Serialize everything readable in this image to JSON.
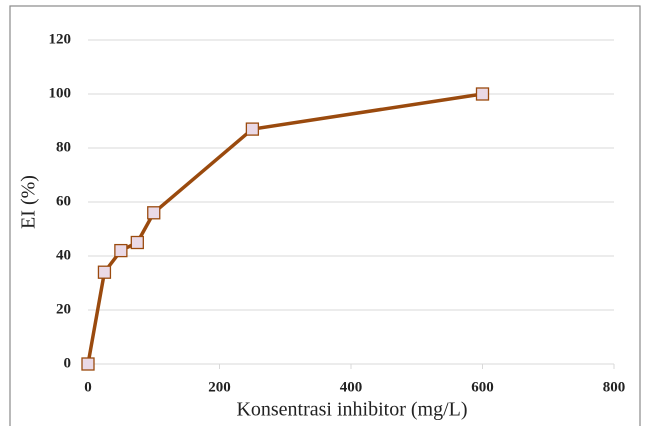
{
  "chart_data": {
    "type": "line",
    "x_label": "Konsentrasi inhibitor (mg/L)",
    "y_label": "EI (%)",
    "x": [
      0,
      25,
      50,
      75,
      100,
      250,
      600
    ],
    "series": [
      {
        "name": "EI",
        "color": "#9a4a0e",
        "values": [
          0,
          34,
          42,
          45,
          56,
          87,
          100
        ]
      }
    ],
    "xlim": [
      0,
      800
    ],
    "xticks": [
      0,
      200,
      400,
      600,
      800
    ],
    "ylim": [
      0,
      120
    ],
    "yticks": [
      0,
      20,
      40,
      60,
      80,
      100,
      120
    ],
    "grid": true
  }
}
